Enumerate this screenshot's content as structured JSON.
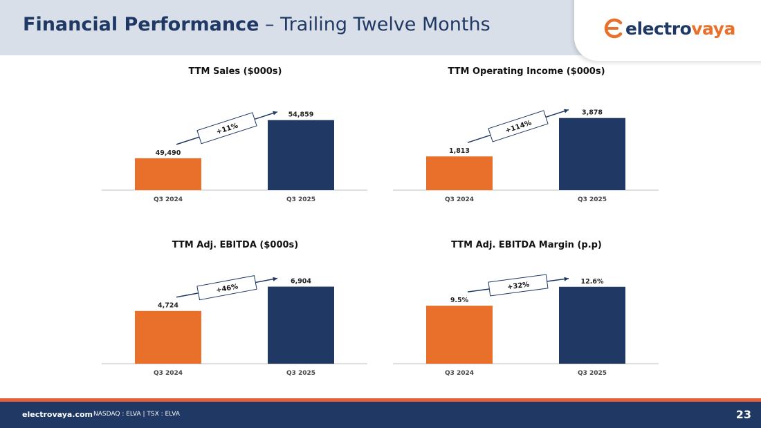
{
  "header": {
    "title_bold": "Financial Performance",
    "title_light": " – Trailing Twelve Months"
  },
  "logo": {
    "text_main": "electro",
    "text_accent": "vaya"
  },
  "colors": {
    "orange": "#e8702a",
    "navy": "#1f3864",
    "axis": "#bfbfbf"
  },
  "chart_data": [
    {
      "type": "bar",
      "title": "TTM Sales ($000s)",
      "categories": [
        "Q3 2024",
        "Q3 2025"
      ],
      "values": [
        49490,
        54859
      ],
      "value_labels": [
        "49,490",
        "54,859"
      ],
      "ylim": [
        45000,
        56000
      ],
      "change_label": "+11%",
      "colors": [
        "#e8702a",
        "#1f3864"
      ]
    },
    {
      "type": "bar",
      "title": "TTM Operating Income ($000s)",
      "categories": [
        "Q3 2024",
        "Q3 2025"
      ],
      "values": [
        1813,
        3878
      ],
      "value_labels": [
        "1,813",
        "3,878"
      ],
      "ylim": [
        0,
        4200
      ],
      "change_label": "+114%",
      "colors": [
        "#e8702a",
        "#1f3864"
      ]
    },
    {
      "type": "bar",
      "title": "TTM Adj. EBITDA ($000s)",
      "categories": [
        "Q3 2024",
        "Q3 2025"
      ],
      "values": [
        4724,
        6904
      ],
      "value_labels": [
        "4,724",
        "6,904"
      ],
      "ylim": [
        0,
        7000
      ],
      "change_label": "+46%",
      "colors": [
        "#e8702a",
        "#1f3864"
      ]
    },
    {
      "type": "bar",
      "title": "TTM Adj. EBITDA Margin (p.p)",
      "categories": [
        "Q3 2024",
        "Q3 2025"
      ],
      "values": [
        9.5,
        12.6
      ],
      "value_labels": [
        "9.5%",
        "12.6%"
      ],
      "ylim": [
        0,
        12.8
      ],
      "change_label": "+32%",
      "colors": [
        "#e8702a",
        "#1f3864"
      ]
    }
  ],
  "footer": {
    "site": "electrovaya.com",
    "tickers": "NASDAQ : ELVA  |  TSX : ELVA",
    "page_number": "23"
  }
}
